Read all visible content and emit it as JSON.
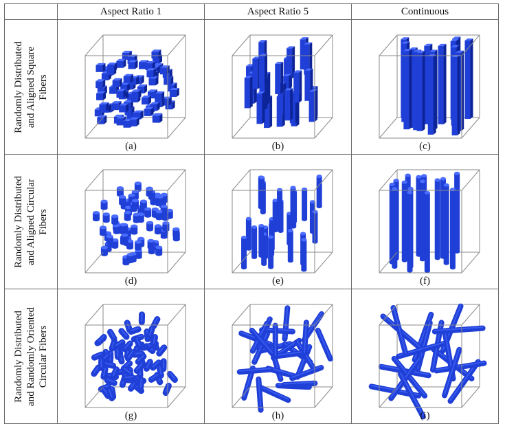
{
  "columns": [
    "Aspect Ratio 1",
    "Aspect Ratio 5",
    "Continuous"
  ],
  "rows": [
    {
      "label_lines": [
        "Randomly Distributed",
        "and Aligned Square",
        "Fibers"
      ],
      "captions": [
        "(a)",
        "(b)",
        "(c)"
      ],
      "fiber_shape": "square",
      "orientation": "aligned"
    },
    {
      "label_lines": [
        "Randomly Distributed",
        "and Aligned Circular",
        "Fibers"
      ],
      "captions": [
        "(d)",
        "(e)",
        "(f)"
      ],
      "fiber_shape": "circular",
      "orientation": "aligned"
    },
    {
      "label_lines": [
        "Randomly Distributed",
        "and Randomly Oriented",
        "Circular Fibers"
      ],
      "captions": [
        "(g)",
        "(h)",
        "(i)"
      ],
      "fiber_shape": "circular",
      "orientation": "random"
    }
  ],
  "colors": {
    "fiber": "#1f3fd6",
    "fiber_dark": "#0d2499",
    "fiber_light": "#4a6cff",
    "box_edge": "#8a8a8a",
    "grid_line": "#666666"
  }
}
